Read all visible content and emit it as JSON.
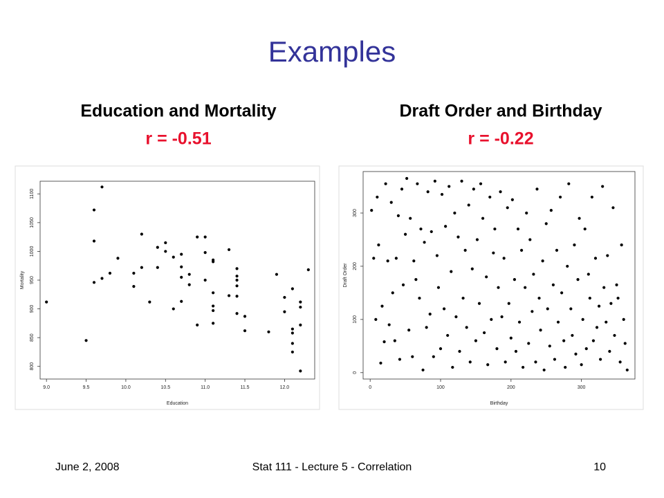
{
  "title": "Examples",
  "footer": {
    "date": "June 2, 2008",
    "course": "Stat 111 - Lecture 5 - Correlation",
    "page": "10"
  },
  "chart_data": [
    {
      "type": "scatter",
      "title": "Education and Mortality",
      "subtitle": "r = -0.51",
      "x_label": "Education",
      "y_label": "Mortality",
      "color": "#000000",
      "xlim": [
        8.92,
        12.38
      ],
      "ylim": [
        778,
        1122
      ],
      "xticks": [
        {
          "value": 9,
          "label": "9.0"
        },
        9.5,
        {
          "value": 10,
          "label": "10.0"
        },
        10.5,
        {
          "value": 11,
          "label": "11.0"
        },
        11.5,
        {
          "value": 12,
          "label": "12.0"
        }
      ],
      "yticks": [
        800,
        850,
        900,
        950,
        1000,
        1050,
        1100
      ],
      "x": [
        9.0,
        9.5,
        9.6,
        9.6,
        9.6,
        9.7,
        9.7,
        9.8,
        9.9,
        10.1,
        10.1,
        10.2,
        10.2,
        10.3,
        10.4,
        10.4,
        10.5,
        10.5,
        10.6,
        10.6,
        10.7,
        10.7,
        10.7,
        10.7,
        10.8,
        10.8,
        10.9,
        10.9,
        11.0,
        11.0,
        11.0,
        11.1,
        11.1,
        11.1,
        11.1,
        11.1,
        11.1,
        11.3,
        11.3,
        11.4,
        11.4,
        11.4,
        11.4,
        11.4,
        11.4,
        11.5,
        11.5,
        11.8,
        11.9,
        12.0,
        12.0,
        12.1,
        12.1,
        12.1,
        12.1,
        12.1,
        12.2,
        12.2,
        12.2,
        12.2,
        12.3
      ],
      "y": [
        912,
        845,
        1072,
        1018,
        946,
        1112,
        953,
        962,
        988,
        962,
        939,
        1030,
        972,
        912,
        1007,
        972,
        1015,
        1000,
        990,
        900,
        995,
        973,
        955,
        913,
        960,
        942,
        1025,
        872,
        1025,
        998,
        950,
        985,
        982,
        928,
        905,
        897,
        875,
        1003,
        923,
        970,
        957,
        950,
        940,
        922,
        892,
        887,
        862,
        860,
        960,
        920,
        895,
        935,
        865,
        858,
        840,
        825,
        912,
        903,
        872,
        792,
        968
      ]
    },
    {
      "type": "scatter",
      "title": "Draft Order and Birthday",
      "subtitle": "r = -0.22",
      "x_label": "Birthday",
      "y_label": "Draft Order",
      "color": "#000000",
      "xlim": [
        -10,
        376
      ],
      "ylim": [
        -12,
        378
      ],
      "xticks": [
        0,
        100,
        200,
        300
      ],
      "yticks": [
        0,
        100,
        200,
        300
      ],
      "x": [
        2,
        5,
        8,
        10,
        12,
        15,
        17,
        20,
        22,
        25,
        27,
        30,
        32,
        35,
        37,
        40,
        42,
        45,
        47,
        50,
        52,
        55,
        57,
        60,
        62,
        65,
        67,
        70,
        72,
        75,
        77,
        80,
        82,
        85,
        87,
        90,
        92,
        95,
        97,
        100,
        102,
        105,
        107,
        110,
        112,
        115,
        117,
        120,
        122,
        125,
        127,
        130,
        132,
        135,
        137,
        140,
        142,
        145,
        147,
        150,
        152,
        155,
        157,
        160,
        162,
        165,
        167,
        170,
        172,
        175,
        177,
        180,
        182,
        185,
        187,
        190,
        192,
        195,
        197,
        200,
        202,
        205,
        207,
        210,
        212,
        215,
        217,
        220,
        222,
        225,
        227,
        230,
        232,
        235,
        237,
        240,
        242,
        245,
        247,
        250,
        252,
        255,
        257,
        260,
        262,
        265,
        267,
        270,
        272,
        275,
        277,
        280,
        282,
        285,
        287,
        290,
        292,
        295,
        297,
        300,
        302,
        305,
        307,
        310,
        312,
        315,
        317,
        320,
        322,
        325,
        327,
        330,
        332,
        335,
        337,
        340,
        342,
        345,
        347,
        350,
        352,
        355,
        357,
        360,
        362,
        365
      ],
      "y": [
        305,
        215,
        100,
        330,
        240,
        18,
        125,
        58,
        355,
        210,
        90,
        320,
        150,
        60,
        215,
        295,
        25,
        345,
        165,
        260,
        365,
        80,
        290,
        30,
        210,
        175,
        355,
        140,
        270,
        5,
        245,
        85,
        340,
        110,
        265,
        30,
        360,
        220,
        160,
        45,
        335,
        120,
        275,
        70,
        350,
        190,
        10,
        300,
        105,
        255,
        40,
        360,
        140,
        230,
        85,
        315,
        20,
        195,
        345,
        60,
        250,
        130,
        355,
        290,
        75,
        180,
        15,
        330,
        100,
        225,
        270,
        45,
        160,
        340,
        105,
        215,
        20,
        310,
        130,
        65,
        325,
        175,
        40,
        270,
        95,
        230,
        10,
        160,
        300,
        55,
        250,
        115,
        185,
        20,
        345,
        140,
        80,
        210,
        5,
        280,
        120,
        50,
        305,
        165,
        25,
        230,
        95,
        330,
        150,
        60,
        10,
        200,
        355,
        120,
        70,
        240,
        35,
        175,
        290,
        15,
        100,
        270,
        45,
        185,
        140,
        330,
        60,
        215,
        85,
        125,
        25,
        350,
        160,
        95,
        220,
        40,
        130,
        310,
        70,
        165,
        140,
        20,
        240,
        100,
        55,
        5
      ]
    }
  ]
}
